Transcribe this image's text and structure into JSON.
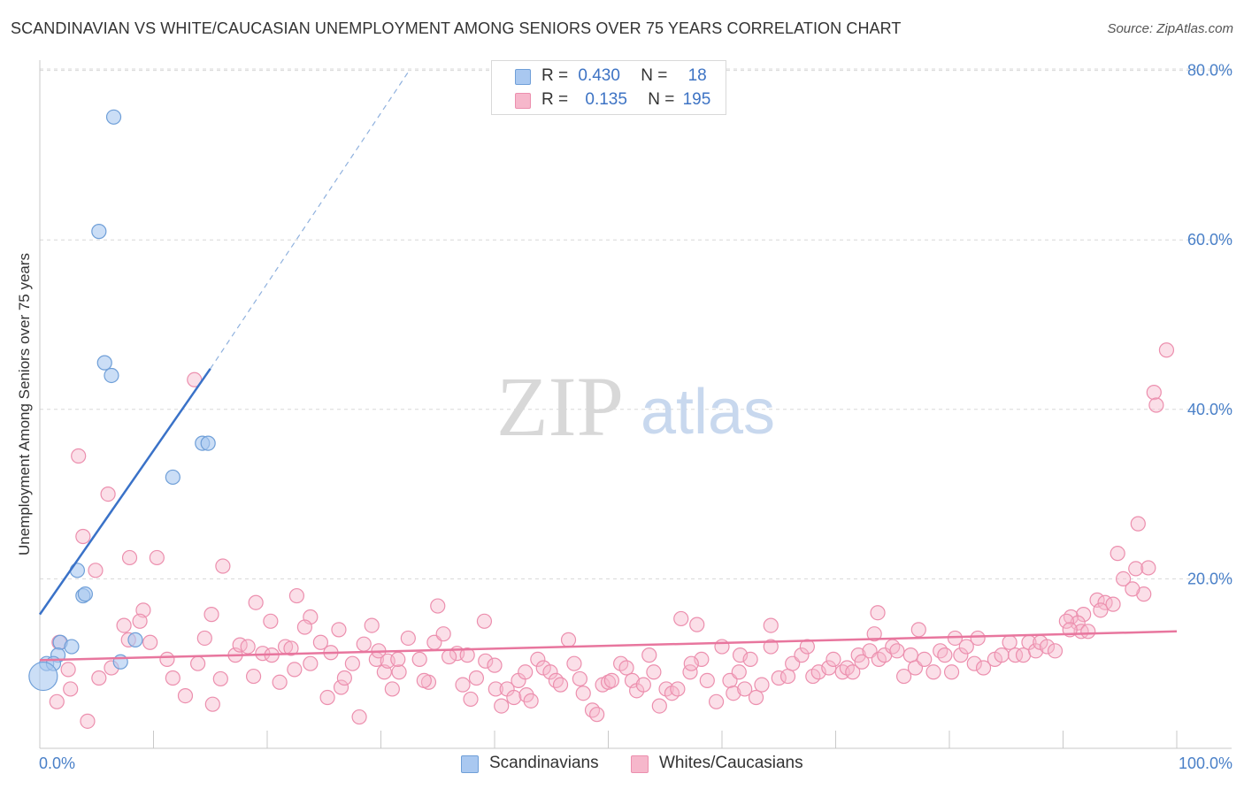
{
  "title": "SCANDINAVIAN VS WHITE/CAUCASIAN UNEMPLOYMENT AMONG SENIORS OVER 75 YEARS CORRELATION CHART",
  "source": "Source: ZipAtlas.com",
  "watermark": {
    "zip": "ZIP",
    "atlas": "atlas"
  },
  "legend": {
    "rows": [
      {
        "r_label": "R =",
        "r_value": "0.430",
        "n_label": "N =",
        "n_value": "18"
      },
      {
        "r_label": "R =",
        "r_value": "0.135",
        "n_label": "N =",
        "n_value": "195"
      }
    ]
  },
  "colors": {
    "blue_fill": "#a9c8f0",
    "blue_stroke": "#6f9fd8",
    "blue_line": "#3a72c8",
    "pink_fill": "#f6b7cb",
    "pink_stroke": "#ec8fae",
    "pink_line": "#e8769e",
    "axis_label": "#4a80c8",
    "grid": "#d8d8d8"
  },
  "chart_data": {
    "type": "scatter",
    "title": "SCANDINAVIAN VS WHITE/CAUCASIAN UNEMPLOYMENT AMONG SENIORS OVER 75 YEARS CORRELATION CHART",
    "xlabel": "",
    "ylabel": "Unemployment Among Seniors over 75 years",
    "xlim": [
      0,
      100
    ],
    "ylim": [
      0,
      80
    ],
    "x_tick_labels": [
      "0.0%",
      "100.0%"
    ],
    "y_ticks": [
      20,
      40,
      60,
      80
    ],
    "y_tick_labels": [
      "20.0%",
      "40.0%",
      "60.0%",
      "80.0%"
    ],
    "grid": true,
    "legend_position": "bottom",
    "series": [
      {
        "name": "Scandinavians",
        "color": "#a9c8f0",
        "points": [
          [
            6.5,
            74.5
          ],
          [
            5.2,
            61.0
          ],
          [
            5.7,
            45.5
          ],
          [
            6.3,
            44.0
          ],
          [
            14.3,
            36.0
          ],
          [
            14.8,
            36.0
          ],
          [
            11.7,
            32.0
          ],
          [
            3.3,
            21.0
          ],
          [
            3.8,
            18.0
          ],
          [
            4.0,
            18.2
          ],
          [
            1.8,
            12.5
          ],
          [
            2.8,
            12.0
          ],
          [
            8.4,
            12.8
          ],
          [
            1.6,
            11.0
          ],
          [
            0.6,
            10.0
          ],
          [
            1.2,
            10.0
          ],
          [
            7.1,
            10.2
          ],
          [
            0.3,
            8.5
          ]
        ],
        "trend": {
          "x": [
            0,
            15
          ],
          "y": [
            15.8,
            44.8
          ],
          "dashed_extension_to": [
            32.5,
            80
          ]
        }
      },
      {
        "name": "Whites/Caucasians",
        "color": "#f6b7cb",
        "points": [
          [
            3.4,
            34.5
          ],
          [
            6.0,
            30.0
          ],
          [
            3.8,
            25.0
          ],
          [
            4.9,
            21.0
          ],
          [
            7.9,
            22.5
          ],
          [
            10.3,
            22.5
          ],
          [
            16.1,
            21.5
          ],
          [
            13.6,
            43.5
          ],
          [
            99.1,
            47.0
          ],
          [
            98.0,
            42.0
          ],
          [
            98.2,
            40.5
          ],
          [
            96.6,
            26.5
          ],
          [
            94.8,
            23.0
          ],
          [
            95.3,
            20.0
          ],
          [
            96.4,
            21.2
          ],
          [
            97.5,
            21.3
          ],
          [
            97.1,
            18.2
          ],
          [
            96.1,
            18.8
          ],
          [
            9.1,
            16.3
          ],
          [
            8.8,
            15.0
          ],
          [
            7.4,
            14.5
          ],
          [
            15.1,
            15.8
          ],
          [
            19.0,
            17.2
          ],
          [
            22.6,
            18.0
          ],
          [
            20.3,
            15.0
          ],
          [
            23.8,
            15.5
          ],
          [
            23.3,
            14.3
          ],
          [
            29.2,
            14.5
          ],
          [
            35.0,
            16.8
          ],
          [
            39.1,
            15.0
          ],
          [
            56.4,
            15.3
          ],
          [
            57.8,
            14.6
          ],
          [
            64.3,
            14.5
          ],
          [
            73.7,
            16.0
          ],
          [
            93.0,
            17.5
          ],
          [
            93.7,
            17.2
          ],
          [
            94.4,
            17.0
          ],
          [
            93.3,
            16.3
          ],
          [
            91.8,
            15.8
          ],
          [
            90.7,
            15.5
          ],
          [
            91.3,
            14.8
          ],
          [
            91.6,
            13.8
          ],
          [
            92.2,
            13.8
          ],
          [
            1.7,
            12.5
          ],
          [
            2.5,
            9.3
          ],
          [
            2.7,
            7.0
          ],
          [
            1.5,
            5.5
          ],
          [
            4.2,
            3.2
          ],
          [
            5.2,
            8.3
          ],
          [
            6.3,
            9.5
          ],
          [
            7.8,
            12.8
          ],
          [
            9.7,
            12.5
          ],
          [
            11.2,
            10.5
          ],
          [
            11.7,
            8.3
          ],
          [
            12.8,
            6.2
          ],
          [
            13.9,
            10.0
          ],
          [
            14.5,
            13.0
          ],
          [
            15.2,
            5.2
          ],
          [
            15.9,
            8.2
          ],
          [
            17.2,
            11.0
          ],
          [
            17.6,
            12.2
          ],
          [
            18.3,
            12.0
          ],
          [
            18.8,
            8.5
          ],
          [
            19.6,
            11.2
          ],
          [
            20.4,
            11.0
          ],
          [
            21.1,
            7.8
          ],
          [
            21.6,
            12.0
          ],
          [
            22.1,
            11.8
          ],
          [
            22.4,
            9.3
          ],
          [
            23.8,
            10.0
          ],
          [
            24.7,
            12.5
          ],
          [
            25.3,
            6.0
          ],
          [
            25.6,
            11.3
          ],
          [
            26.5,
            7.2
          ],
          [
            26.8,
            8.3
          ],
          [
            27.5,
            10.0
          ],
          [
            28.5,
            12.3
          ],
          [
            28.1,
            3.7
          ],
          [
            29.6,
            10.5
          ],
          [
            30.3,
            9.0
          ],
          [
            30.6,
            10.3
          ],
          [
            31.0,
            7.0
          ],
          [
            31.6,
            9.0
          ],
          [
            32.4,
            13.0
          ],
          [
            33.4,
            10.5
          ],
          [
            34.7,
            12.5
          ],
          [
            34.2,
            7.8
          ],
          [
            35.5,
            13.5
          ],
          [
            36.7,
            11.2
          ],
          [
            37.6,
            11.0
          ],
          [
            37.9,
            5.8
          ],
          [
            38.4,
            8.3
          ],
          [
            39.2,
            10.3
          ],
          [
            40.1,
            7.0
          ],
          [
            40.6,
            5.0
          ],
          [
            41.1,
            7.0
          ],
          [
            41.7,
            6.0
          ],
          [
            42.1,
            8.0
          ],
          [
            42.8,
            6.3
          ],
          [
            43.2,
            5.6
          ],
          [
            43.8,
            10.5
          ],
          [
            44.3,
            9.5
          ],
          [
            44.9,
            9.0
          ],
          [
            45.4,
            8.0
          ],
          [
            45.8,
            7.5
          ],
          [
            46.5,
            12.8
          ],
          [
            47.0,
            10.0
          ],
          [
            47.5,
            8.2
          ],
          [
            47.8,
            6.5
          ],
          [
            48.6,
            4.5
          ],
          [
            49.0,
            4.0
          ],
          [
            49.5,
            7.5
          ],
          [
            50.0,
            7.8
          ],
          [
            50.3,
            8.0
          ],
          [
            51.1,
            10.0
          ],
          [
            51.6,
            9.5
          ],
          [
            52.1,
            8.0
          ],
          [
            52.5,
            6.8
          ],
          [
            53.1,
            7.5
          ],
          [
            53.6,
            11.0
          ],
          [
            54.0,
            9.0
          ],
          [
            54.5,
            5.0
          ],
          [
            55.1,
            7.0
          ],
          [
            55.6,
            6.5
          ],
          [
            56.1,
            7.0
          ],
          [
            57.2,
            9.0
          ],
          [
            58.2,
            10.5
          ],
          [
            58.7,
            8.0
          ],
          [
            59.5,
            5.5
          ],
          [
            60.0,
            12.0
          ],
          [
            60.7,
            8.0
          ],
          [
            61.0,
            6.5
          ],
          [
            61.6,
            11.0
          ],
          [
            62.0,
            7.0
          ],
          [
            62.5,
            10.5
          ],
          [
            63.0,
            6.0
          ],
          [
            63.5,
            7.5
          ],
          [
            64.3,
            12.0
          ],
          [
            65.0,
            8.3
          ],
          [
            65.8,
            8.5
          ],
          [
            66.2,
            10.0
          ],
          [
            67.0,
            11.0
          ],
          [
            67.5,
            12.0
          ],
          [
            68.0,
            8.5
          ],
          [
            68.5,
            9.0
          ],
          [
            69.4,
            9.5
          ],
          [
            69.8,
            10.5
          ],
          [
            70.6,
            9.0
          ],
          [
            71.0,
            9.5
          ],
          [
            71.5,
            9.0
          ],
          [
            72.0,
            11.0
          ],
          [
            72.3,
            10.2
          ],
          [
            73.0,
            11.5
          ],
          [
            73.4,
            13.5
          ],
          [
            73.8,
            10.5
          ],
          [
            74.3,
            11.0
          ],
          [
            75.0,
            12.0
          ],
          [
            75.4,
            11.5
          ],
          [
            76.0,
            8.5
          ],
          [
            76.6,
            11.0
          ],
          [
            77.0,
            9.5
          ],
          [
            77.3,
            14.0
          ],
          [
            77.8,
            10.5
          ],
          [
            78.6,
            9.0
          ],
          [
            79.2,
            11.5
          ],
          [
            79.6,
            11.0
          ],
          [
            80.2,
            9.0
          ],
          [
            80.5,
            13.0
          ],
          [
            81.0,
            11.0
          ],
          [
            81.5,
            12.0
          ],
          [
            82.2,
            10.0
          ],
          [
            82.5,
            13.0
          ],
          [
            83.0,
            9.5
          ],
          [
            84.0,
            10.5
          ],
          [
            84.6,
            11.0
          ],
          [
            85.3,
            12.5
          ],
          [
            85.8,
            11.0
          ],
          [
            86.5,
            11.0
          ],
          [
            87.0,
            12.5
          ],
          [
            87.6,
            11.5
          ],
          [
            88.0,
            12.5
          ],
          [
            88.6,
            12.0
          ],
          [
            89.3,
            11.5
          ],
          [
            90.3,
            15.0
          ],
          [
            90.6,
            14.0
          ],
          [
            57.3,
            10.0
          ],
          [
            33.8,
            8.0
          ],
          [
            37.2,
            7.5
          ],
          [
            26.3,
            14.0
          ],
          [
            29.8,
            11.5
          ],
          [
            31.5,
            10.5
          ],
          [
            36.0,
            10.8
          ],
          [
            40.0,
            9.8
          ],
          [
            42.7,
            9.0
          ],
          [
            61.5,
            9.0
          ]
        ],
        "trend": {
          "x": [
            0,
            100
          ],
          "y": [
            10.4,
            13.8
          ]
        }
      }
    ]
  }
}
